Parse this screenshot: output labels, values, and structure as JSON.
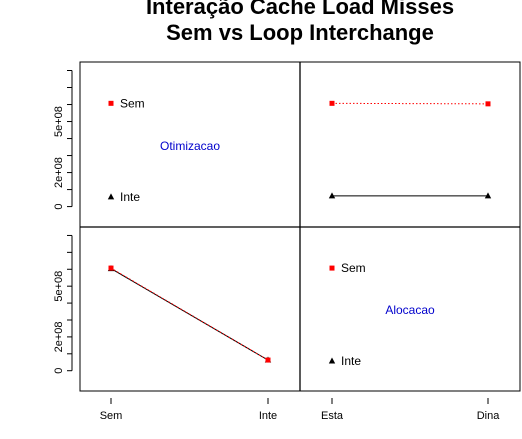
{
  "chart_data": {
    "type": "line",
    "title_line1": "Interação Cache Load Misses",
    "title_line2": "Sem vs Loop Interchange",
    "ylim": [
      -120000000,
      850000000
    ],
    "y_ticks": [
      0,
      200000000,
      500000000
    ],
    "y_tick_labels": [
      "0",
      "2e+08",
      "5e+08"
    ],
    "colors": {
      "series_1": "#ff0000",
      "series_2": "#000000",
      "panel_label": "#0000cc"
    },
    "panels": [
      {
        "label": "Otimizacao",
        "factor_levels": [
          "Sem",
          "Inte"
        ],
        "trace_levels": [
          "Esta",
          "Dina"
        ],
        "series": [
          {
            "values": [
              607000000,
              604000000
            ],
            "marker": "square",
            "color": "#ff0000",
            "line": "dotted"
          },
          {
            "values": [
              63000000,
              63000000
            ],
            "marker": "triangle",
            "color": "#000000",
            "line": "solid"
          }
        ]
      },
      {
        "label": "Alocacao",
        "factor_levels": [
          "Esta",
          "Dina"
        ],
        "trace_levels": [
          "Sem",
          "Inte"
        ],
        "series": [
          {
            "values": [
              607000000,
              63000000
            ],
            "marker": "square",
            "color": "#ff0000",
            "line": "dotted"
          },
          {
            "values": [
              604000000,
              63000000
            ],
            "marker": "triangle",
            "color": "#000000",
            "line": "solid"
          }
        ]
      }
    ],
    "x_tick_labels_left": [
      "Sem",
      "Inte"
    ],
    "x_tick_labels_right": [
      "Esta",
      "Dina"
    ]
  }
}
